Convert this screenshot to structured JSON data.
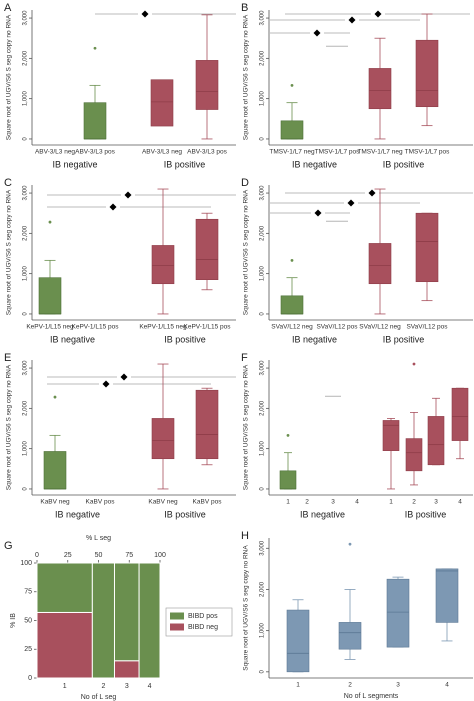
{
  "chart_data": [
    {
      "type": "box",
      "label": "A",
      "ylabel": "Square root of UGV/S6  S seg copy no RNA",
      "categories": [
        "ABV-3/L3 neg",
        "ABV-3/L3 pos",
        "ABV-3/L3 neg",
        "ABV-3/L3 pos"
      ],
      "groups": [
        "IB negative",
        "IB positive"
      ],
      "ylim": [
        -150,
        3200
      ],
      "yticks": [
        0,
        {
          "value": 1000,
          "label": "1,000"
        },
        {
          "value": 2000,
          "label": "2,000"
        },
        {
          "value": 3000,
          "label": "3,000"
        }
      ],
      "boxes": [
        null,
        {
          "low": 0,
          "q1": 0,
          "median": 0,
          "q3": 900,
          "high": 1330,
          "outliers": [
            2250
          ],
          "color": "#6a8f4e"
        },
        {
          "q1": 320,
          "median": 920,
          "q3": 1470,
          "color": "#a8505d"
        },
        {
          "low": 0,
          "q1": 730,
          "median": 1180,
          "q3": 1950,
          "high": 3080,
          "color": "#a8505d"
        }
      ]
    },
    {
      "type": "box",
      "label": "B",
      "ylabel": "Square root of UGV/S6  S seg copy no RNA",
      "categories": [
        "TMSV-1/L7 neg",
        "TMSV-1/L7 pos",
        "TMSV-1/L7 neg",
        "TMSV-1/L7 pos"
      ],
      "groups": [
        "IB negative",
        "IB positive"
      ],
      "ylim": [
        -150,
        3200
      ],
      "yticks": [
        0,
        {
          "value": 1000,
          "label": "1,000"
        },
        {
          "value": 2000,
          "label": "2,000"
        },
        {
          "value": 3000,
          "label": "3,000"
        }
      ],
      "boxes": [
        {
          "low": 0,
          "q1": 0,
          "median": 0,
          "q3": 450,
          "high": 900,
          "outliers": [
            1330
          ],
          "color": "#6a8f4e"
        },
        {
          "median": 2300,
          "color": "#b5b5b5"
        },
        {
          "low": 0,
          "q1": 750,
          "median": 1200,
          "q3": 1750,
          "high": 2500,
          "color": "#a8505d"
        },
        {
          "low": 330,
          "q1": 800,
          "median": 1200,
          "q3": 2450,
          "high": 3100,
          "color": "#a8505d"
        }
      ]
    },
    {
      "type": "box",
      "label": "C",
      "ylabel": "Square root of UGV/S6  S seg copy no RNA",
      "categories": [
        "KePV-1/L15 neg",
        "KePV-1/L15 pos",
        "KePV-1/L15 neg",
        "KePV-1/L15 pos"
      ],
      "groups": [
        "IB negative",
        "IB positive"
      ],
      "ylim": [
        -150,
        3200
      ],
      "yticks": [
        0,
        {
          "value": 1000,
          "label": "1,000"
        },
        {
          "value": 2000,
          "label": "2,000"
        },
        {
          "value": 3000,
          "label": "3,000"
        }
      ],
      "boxes": [
        {
          "low": 0,
          "q1": 0,
          "median": 0,
          "q3": 900,
          "high": 1330,
          "outliers": [
            2280
          ],
          "color": "#6a8f4e"
        },
        null,
        {
          "low": 0,
          "q1": 750,
          "median": 1200,
          "q3": 1700,
          "high": 3100,
          "color": "#a8505d"
        },
        {
          "low": 600,
          "q1": 850,
          "median": 1350,
          "q3": 2350,
          "high": 2500,
          "color": "#a8505d"
        }
      ]
    },
    {
      "type": "box",
      "label": "D",
      "ylabel": "Square root of UGV/S6  S seg copy no RNA",
      "categories": [
        "SVaV/L12 neg",
        "SVaV/L12 pos",
        "SVaV/L12 neg",
        "SVaV/L12 pos"
      ],
      "groups": [
        "IB negative",
        "IB positive"
      ],
      "ylim": [
        -150,
        3200
      ],
      "yticks": [
        0,
        {
          "value": 1000,
          "label": "1,000"
        },
        {
          "value": 2000,
          "label": "2,000"
        },
        {
          "value": 3000,
          "label": "3,000"
        }
      ],
      "boxes": [
        {
          "low": 0,
          "q1": 0,
          "median": 0,
          "q3": 450,
          "high": 900,
          "outliers": [
            1330
          ],
          "color": "#6a8f4e"
        },
        {
          "median": 2300,
          "color": "#b5b5b5"
        },
        {
          "low": 0,
          "q1": 750,
          "median": 1200,
          "q3": 1750,
          "high": 3100,
          "color": "#a8505d"
        },
        {
          "low": 330,
          "q1": 800,
          "median": 1800,
          "q3": 2500,
          "high": 2500,
          "color": "#a8505d"
        }
      ]
    },
    {
      "type": "box",
      "label": "E",
      "ylabel": "Square root of UGV/S6  S seg copy no RNA",
      "categories": [
        "KaBV neg",
        "KaBV pos",
        "KaBV neg",
        "KaBV pos"
      ],
      "groups": [
        "IB negative",
        "IB positive"
      ],
      "ylim": [
        -150,
        3200
      ],
      "yticks": [
        0,
        {
          "value": 1000,
          "label": "1,000"
        },
        {
          "value": 2000,
          "label": "2,000"
        },
        {
          "value": 3000,
          "label": "3,000"
        }
      ],
      "boxes": [
        {
          "low": 0,
          "q1": 0,
          "median": 0,
          "q3": 930,
          "high": 1330,
          "outliers": [
            2280
          ],
          "color": "#6a8f4e"
        },
        null,
        {
          "low": 0,
          "q1": 750,
          "median": 1200,
          "q3": 1750,
          "high": 3100,
          "color": "#a8505d"
        },
        {
          "low": 600,
          "q1": 750,
          "median": 1350,
          "q3": 2450,
          "high": 2500,
          "color": "#a8505d"
        }
      ]
    },
    {
      "type": "box",
      "label": "F",
      "ylabel": "Square root of UGV/S6  S seg copy no RNA",
      "categories": [
        "1",
        "2",
        "3",
        "4",
        "1",
        "2",
        "3",
        "4"
      ],
      "groups": [
        "IB negative",
        "IB positive"
      ],
      "ylim": [
        -150,
        3200
      ],
      "yticks": [
        0,
        {
          "value": 1000,
          "label": "1,000"
        },
        {
          "value": 2000,
          "label": "2,000"
        },
        {
          "value": 3000,
          "label": "3,000"
        }
      ],
      "boxes": [
        {
          "low": 0,
          "q1": 0,
          "median": 0,
          "q3": 450,
          "high": 900,
          "outliers": [
            1330
          ],
          "color": "#6a8f4e"
        },
        null,
        {
          "median": 2300,
          "color": "#b5b5b5"
        },
        null,
        {
          "low": 0,
          "q1": 950,
          "median": 1580,
          "q3": 1700,
          "high": 1750,
          "color": "#a8505d"
        },
        {
          "low": 100,
          "q1": 450,
          "median": 900,
          "q3": 1250,
          "high": 1900,
          "outliers": [
            3100
          ],
          "color": "#a8505d"
        },
        {
          "low": 600,
          "q1": 600,
          "median": 1100,
          "q3": 1800,
          "high": 2250,
          "color": "#a8505d"
        },
        {
          "low": 750,
          "q1": 1200,
          "median": 1800,
          "q3": 2500,
          "high": 2500,
          "color": "#a8505d"
        }
      ]
    },
    {
      "type": "mosaic",
      "label": "G",
      "top_xlabel": "% L seg",
      "xlim": [
        0,
        100
      ],
      "xticks": [
        0,
        25,
        50,
        75,
        100
      ],
      "ylabel": "% IB",
      "ylim": [
        0,
        100
      ],
      "yticks": [
        0,
        25,
        50,
        75,
        100
      ],
      "xlabel": "No of L seg",
      "categories": [
        "1",
        "2",
        "3",
        "4"
      ],
      "widths": [
        45,
        18,
        20,
        17
      ],
      "series": [
        {
          "name": "BIBD pos",
          "color": "#6a8f4e",
          "values": [
            43,
            100,
            85,
            100
          ]
        },
        {
          "name": "BIBD neg",
          "color": "#a8505d",
          "values": [
            57,
            0,
            15,
            0
          ]
        }
      ]
    },
    {
      "type": "box",
      "label": "H",
      "ylabel": "Square root of UGV/S6  S seg copy no RNA",
      "xlabel": "No of L segments",
      "categories": [
        "1",
        "2",
        "3",
        "4"
      ],
      "ylim": [
        -150,
        3250
      ],
      "yticks": [
        0,
        {
          "value": 1000,
          "label": "1,000"
        },
        {
          "value": 2000,
          "label": "2,000"
        },
        {
          "value": 3000,
          "label": "3,000"
        }
      ],
      "boxes": [
        {
          "low": 0,
          "q1": 0,
          "median": 450,
          "q3": 1500,
          "high": 1750,
          "color": "#7d98b3"
        },
        {
          "low": 300,
          "q1": 550,
          "median": 950,
          "q3": 1200,
          "high": 2000,
          "outliers": [
            3100
          ],
          "color": "#7d98b3"
        },
        {
          "low": 600,
          "q1": 600,
          "median": 1450,
          "q3": 2250,
          "high": 2300,
          "color": "#7d98b3"
        },
        {
          "low": 750,
          "q1": 1200,
          "median": 2450,
          "q3": 2500,
          "high": 2500,
          "color": "#7d98b3"
        }
      ]
    }
  ]
}
